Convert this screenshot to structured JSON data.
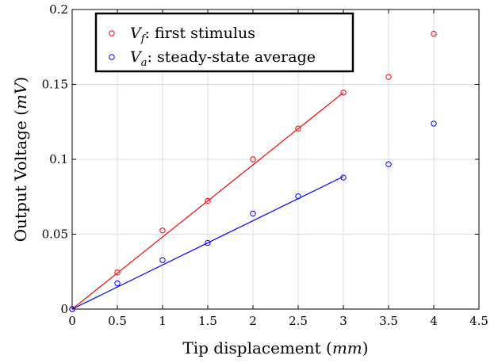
{
  "chart_data": {
    "type": "scatter",
    "xlabel_text": "Tip displacement",
    "xlabel_unit": "mm",
    "ylabel_text": "Output Voltage",
    "ylabel_unit": "mV",
    "xlim": [
      0,
      4.5
    ],
    "ylim": [
      0,
      0.2
    ],
    "x_ticks": [
      0,
      0.5,
      1,
      1.5,
      2,
      2.5,
      3,
      3.5,
      4,
      4.5
    ],
    "x_tick_labels": [
      "0",
      "0.5",
      "1",
      "1.5",
      "2",
      "2.5",
      "3",
      "3.5",
      "4",
      "4.5"
    ],
    "y_ticks": [
      0,
      0.05,
      0.1,
      0.15,
      0.2
    ],
    "y_tick_labels": [
      "0",
      "0.05",
      "0.1",
      "0.15",
      "0.2"
    ],
    "grid": true,
    "legend_position": "top-left",
    "series": [
      {
        "name": "first stimulus",
        "symbol": "V",
        "subscript": "f",
        "color": "#ff0000",
        "x": [
          0,
          0.5,
          1,
          1.5,
          2,
          2.5,
          3,
          3.5,
          4
        ],
        "y": [
          0.0,
          0.0245,
          0.0525,
          0.0722,
          0.1,
          0.1205,
          0.1445,
          0.155,
          0.1838
        ],
        "fit": {
          "x": [
            0,
            3
          ],
          "y": [
            0.0,
            0.1445
          ]
        }
      },
      {
        "name": "steady-state average",
        "symbol": "V",
        "subscript": "a",
        "color": "#0000ff",
        "x": [
          0,
          0.5,
          1,
          1.5,
          2,
          2.5,
          3,
          3.5,
          4
        ],
        "y": [
          0.0,
          0.0172,
          0.0327,
          0.0442,
          0.0638,
          0.0753,
          0.0878,
          0.0967,
          0.1238
        ],
        "fit": {
          "x": [
            0,
            3
          ],
          "y": [
            0.0,
            0.0885
          ]
        }
      }
    ]
  }
}
